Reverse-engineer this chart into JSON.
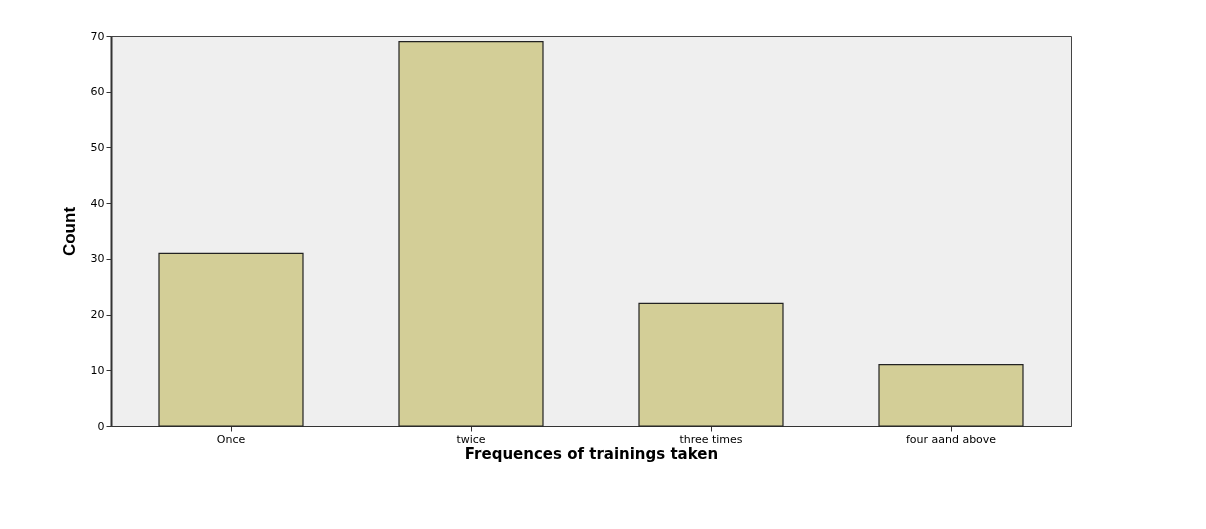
{
  "chart_data": {
    "type": "bar",
    "xlabel": "Frequences of trainings  taken",
    "ylabel": "Count",
    "categories": [
      "Once",
      "twice",
      "three times",
      "four aand above"
    ],
    "values": [
      31,
      69,
      22,
      11
    ],
    "color": "#d3ce97",
    "ylim": [
      0,
      70
    ],
    "yticks": [
      0,
      10,
      20,
      30,
      40,
      50,
      60,
      70
    ],
    "grid": false
  }
}
